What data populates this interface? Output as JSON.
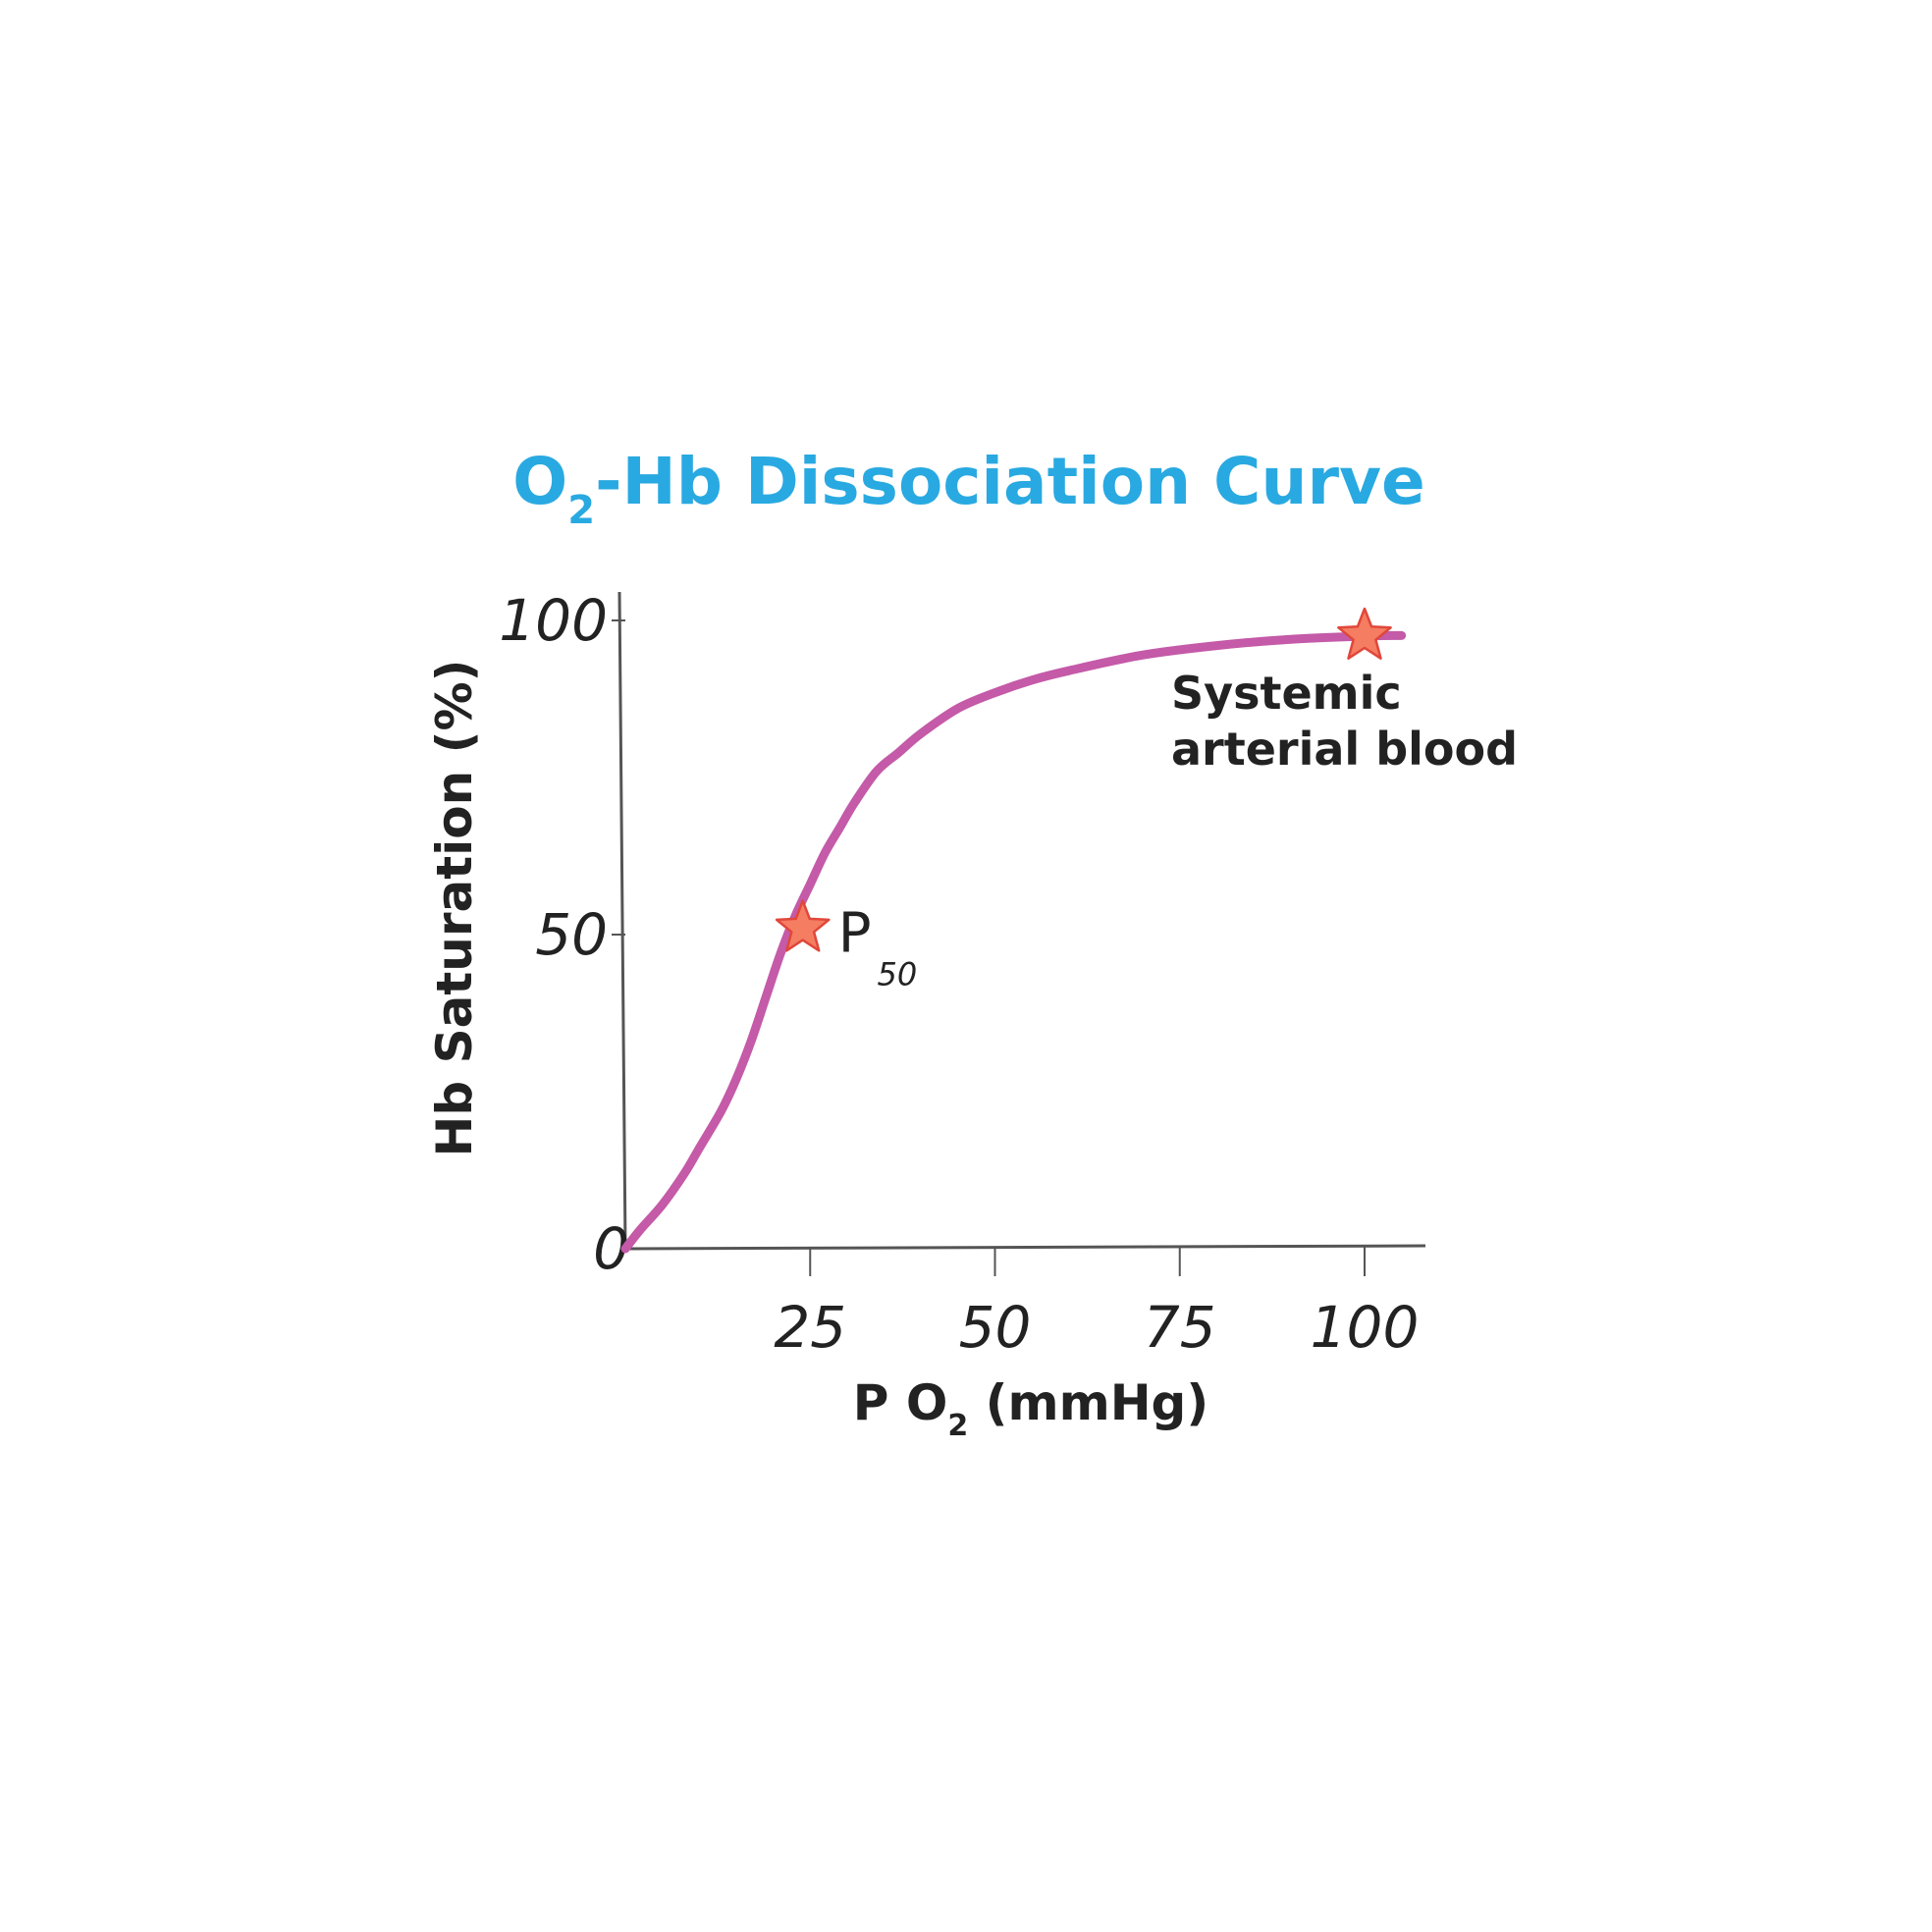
{
  "chart_data": {
    "type": "line",
    "title": {
      "main": "O",
      "sub": "2",
      "rest": "-Hb Dissociation Curve"
    },
    "xlabel": {
      "main": "P O",
      "sub": "2",
      "rest": " (mmHg)"
    },
    "ylabel": "Hb Saturation (%)",
    "xlim": [
      0,
      105
    ],
    "ylim": [
      0,
      100
    ],
    "x_ticks": [
      25,
      50,
      75,
      100
    ],
    "x_tick_labels": [
      "25",
      "50",
      "75",
      "100"
    ],
    "y_ticks": [
      0,
      50,
      100
    ],
    "y_tick_labels": [
      "0",
      "50",
      "100"
    ],
    "grid": false,
    "series": [
      {
        "x": [
          0,
          2,
          5,
          8,
          10,
          13,
          15,
          17,
          19,
          21,
          23,
          25,
          27,
          29,
          31,
          34,
          37,
          40,
          45,
          50,
          55,
          60,
          70,
          80,
          90,
          100,
          105
        ],
        "y": [
          0,
          3,
          7,
          12,
          16,
          22,
          27,
          33,
          40,
          47,
          53,
          58,
          63,
          67,
          71,
          76,
          79,
          82,
          86,
          88.5,
          90.5,
          92,
          94.5,
          96,
          97,
          97.5,
          97.6
        ]
      }
    ],
    "markers": [
      {
        "x": 24,
        "y": 51,
        "label": "P",
        "label_sub": "50"
      },
      {
        "x": 100,
        "y": 97.5,
        "label_lines": [
          "Systemic",
          "arterial blood"
        ]
      }
    ],
    "colors": {
      "curve": "#c45aa8",
      "marker_fill": "#f47d62",
      "marker_stroke": "#e0473a",
      "axis": "#555555",
      "title": "#29a9e1",
      "text": "#222222"
    }
  }
}
